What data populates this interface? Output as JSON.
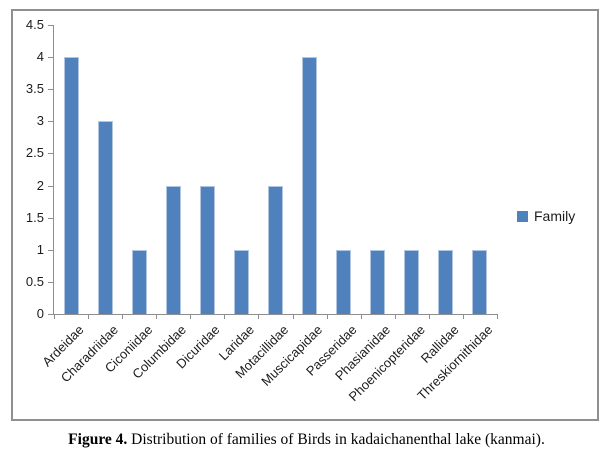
{
  "chart_data": {
    "type": "bar",
    "title": "",
    "categories": [
      "Ardeidae",
      "Charadriidae",
      "Ciconiidae",
      "Columbidae",
      "Dicuridae",
      "Laridae",
      "Motacillidae",
      "Muscicapidae",
      "Passeridae",
      "Phasianidae",
      "Phoenicopteridae",
      "Rallidae",
      "Threskiornithidae"
    ],
    "series": [
      {
        "name": "Family",
        "values": [
          4,
          3,
          1,
          2,
          2,
          1,
          2,
          4,
          1,
          1,
          1,
          1,
          1
        ]
      }
    ],
    "xlabel": "",
    "ylabel": "",
    "ylim": [
      0,
      4.5
    ],
    "yticks": [
      "0",
      "0.5",
      "1",
      "1.5",
      "2",
      "2.5",
      "3",
      "3.5",
      "4",
      "4.5"
    ],
    "grid": false,
    "legend": {
      "label": "Family",
      "position": "right"
    },
    "colors": {
      "bar": "#4f81bd",
      "bar_border": "#b3c6e1",
      "axis": "#8e8e8e",
      "tick_label": "#1c1c1c",
      "chart_border": "#909090"
    }
  },
  "caption": {
    "label": "Figure 4.",
    "text": "Distribution of families of Birds in kadaichanenthal lake (kanmai)."
  }
}
